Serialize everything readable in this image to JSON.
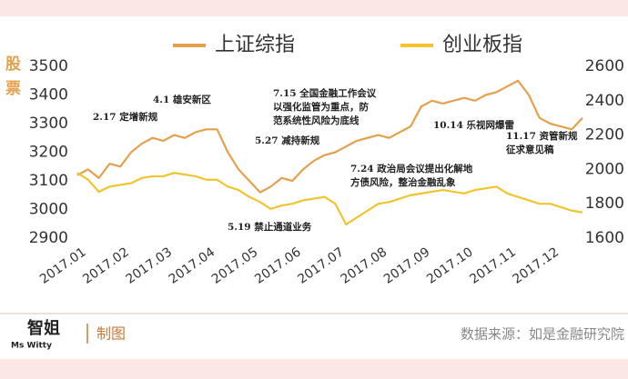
{
  "chart_data": {
    "type": "line",
    "y_label": "股票",
    "categories": [
      "2017.01",
      null,
      null,
      null,
      "2017.02",
      null,
      null,
      null,
      "2017.03",
      null,
      null,
      null,
      "2017.04",
      null,
      null,
      null,
      "2017.05",
      null,
      null,
      null,
      "2017.06",
      null,
      null,
      null,
      "2017.07",
      null,
      null,
      null,
      "2017.08",
      null,
      null,
      null,
      "2017.09",
      null,
      null,
      null,
      "2017.10",
      null,
      null,
      null,
      "2017.11",
      null,
      null,
      null,
      "2017.12",
      null,
      null,
      null
    ],
    "series": [
      {
        "name": "上证综指",
        "color": "#e3a14c",
        "axis": "y",
        "values": [
          3120,
          3140,
          3110,
          3160,
          3150,
          3200,
          3230,
          3250,
          3240,
          3260,
          3250,
          3270,
          3280,
          3280,
          3200,
          3140,
          3100,
          3060,
          3080,
          3110,
          3100,
          3140,
          3170,
          3190,
          3200,
          3220,
          3240,
          3250,
          3260,
          3250,
          3270,
          3290,
          3360,
          3380,
          3370,
          3380,
          3390,
          3380,
          3400,
          3410,
          3430,
          3450,
          3400,
          3320,
          3300,
          3290,
          3280,
          3320
        ]
      },
      {
        "name": "创业板指",
        "color": "#f2c42c",
        "axis": "y2",
        "values": [
          1980,
          1940,
          1870,
          1900,
          1910,
          1920,
          1950,
          1960,
          1960,
          1980,
          1970,
          1960,
          1940,
          1940,
          1900,
          1880,
          1840,
          1810,
          1770,
          1790,
          1800,
          1820,
          1830,
          1840,
          1800,
          1680,
          1720,
          1760,
          1800,
          1810,
          1830,
          1850,
          1860,
          1870,
          1880,
          1870,
          1860,
          1880,
          1890,
          1900,
          1860,
          1840,
          1820,
          1800,
          1800,
          1780,
          1760,
          1750
        ]
      }
    ],
    "ylim": [
      2900,
      3500
    ],
    "yticks": [
      2900,
      3000,
      3100,
      3200,
      3300,
      3400,
      3500
    ],
    "y2lim": [
      1600,
      2600
    ],
    "y2ticks": [
      1600,
      1800,
      2000,
      2200,
      2400,
      2600
    ],
    "annotations": [
      [
        "2.17 定增新规"
      ],
      [
        "4.1 雄安新区"
      ],
      [
        "7.15 全国金融工作会议",
        "以强化监管为重点，防",
        "范系统性风险为底线"
      ],
      [
        "5.27 减持新规"
      ],
      [
        "10.14 乐视网爆雷"
      ],
      [
        "7.24 政治局会议提出化解地",
        "方债风险，整治金融乱象"
      ],
      [
        "11.17 资管新规",
        "征求意见稿"
      ],
      [
        "5.19 禁止通道业务"
      ]
    ],
    "footer": {
      "logo": "Ms Witty",
      "logo_cn": "智姐",
      "made": "制图",
      "source": "数据来源：如是金融研究院"
    }
  }
}
